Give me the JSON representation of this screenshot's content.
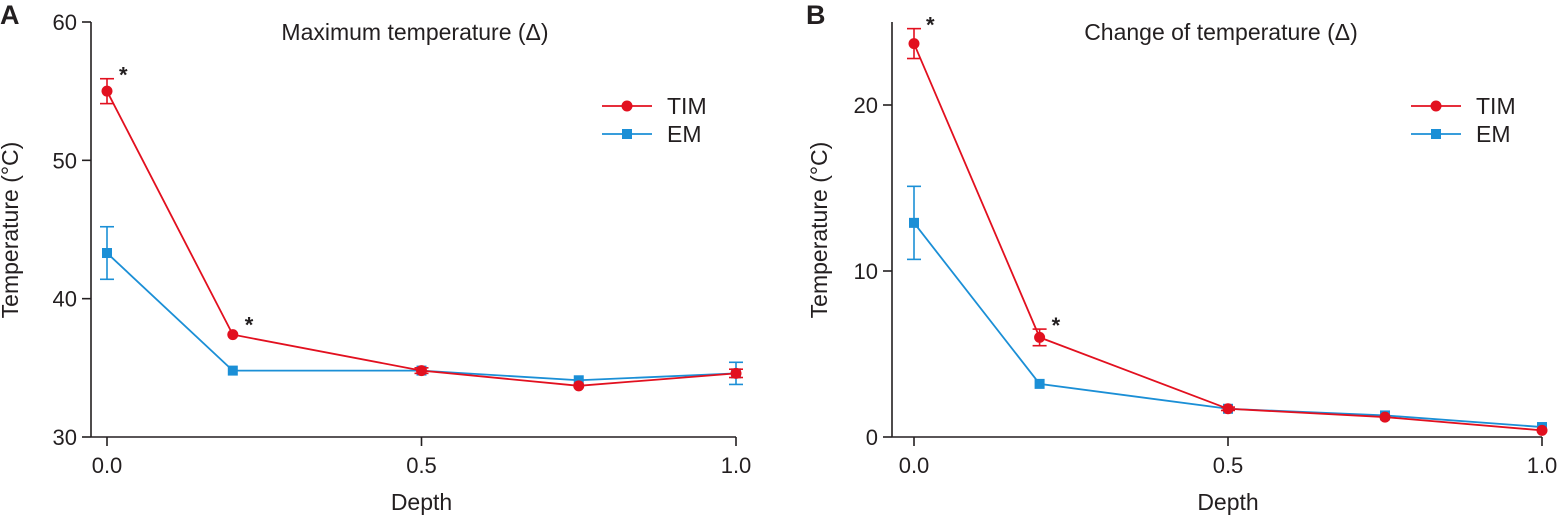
{
  "chart_data": [
    {
      "type": "line",
      "panel_label": "A",
      "title": "Maximum temperature (Δ)",
      "xlabel": "Depth",
      "ylabel": "Temperature (°C)",
      "xlim": [
        0,
        1
      ],
      "ylim": [
        30,
        60
      ],
      "xticks": [
        0.0,
        0.5,
        1.0
      ],
      "xtick_labels": [
        "0.0",
        "0.5",
        "1.0"
      ],
      "yticks": [
        30,
        40,
        50,
        60
      ],
      "ytick_labels": [
        "30",
        "40",
        "50",
        "60"
      ],
      "legend_position": "top-right",
      "x": [
        0.0,
        0.2,
        0.5,
        0.75,
        1.0
      ],
      "series": [
        {
          "name": "TIM",
          "color": "#e2101f",
          "marker": "circle",
          "values": [
            55.0,
            37.4,
            34.8,
            33.7,
            34.6
          ],
          "errors": [
            0.9,
            0,
            0.2,
            0,
            0.3
          ],
          "significant": [
            true,
            true,
            false,
            false,
            false
          ]
        },
        {
          "name": "EM",
          "color": "#1b8fd6",
          "marker": "square",
          "values": [
            43.3,
            34.8,
            34.8,
            34.1,
            34.6
          ],
          "errors": [
            1.9,
            0,
            0,
            0,
            0.8
          ],
          "significant": [
            false,
            false,
            false,
            false,
            false
          ]
        }
      ]
    },
    {
      "type": "line",
      "panel_label": "B",
      "title": "Change of temperature (Δ)",
      "xlabel": "Depth",
      "ylabel": "Temperature (°C)",
      "xlim": [
        0,
        1
      ],
      "ylim": [
        0,
        25
      ],
      "xticks": [
        0.0,
        0.5,
        1.0
      ],
      "xtick_labels": [
        "0.0",
        "0.5",
        "1.0"
      ],
      "yticks": [
        0,
        10,
        20
      ],
      "ytick_labels": [
        "0",
        "10",
        "20"
      ],
      "legend_position": "top-right",
      "x": [
        0.0,
        0.2,
        0.5,
        0.75,
        1.0
      ],
      "series": [
        {
          "name": "TIM",
          "color": "#e2101f",
          "marker": "circle",
          "values": [
            23.7,
            6.0,
            1.7,
            1.2,
            0.4
          ],
          "errors": [
            0.9,
            0.5,
            0.1,
            0,
            0
          ],
          "significant": [
            true,
            true,
            false,
            false,
            false
          ]
        },
        {
          "name": "EM",
          "color": "#1b8fd6",
          "marker": "square",
          "values": [
            12.9,
            3.2,
            1.7,
            1.3,
            0.6
          ],
          "errors": [
            2.2,
            0,
            0,
            0,
            0
          ],
          "significant": [
            false,
            false,
            false,
            false,
            false
          ]
        }
      ]
    }
  ],
  "significance_marker": "*"
}
